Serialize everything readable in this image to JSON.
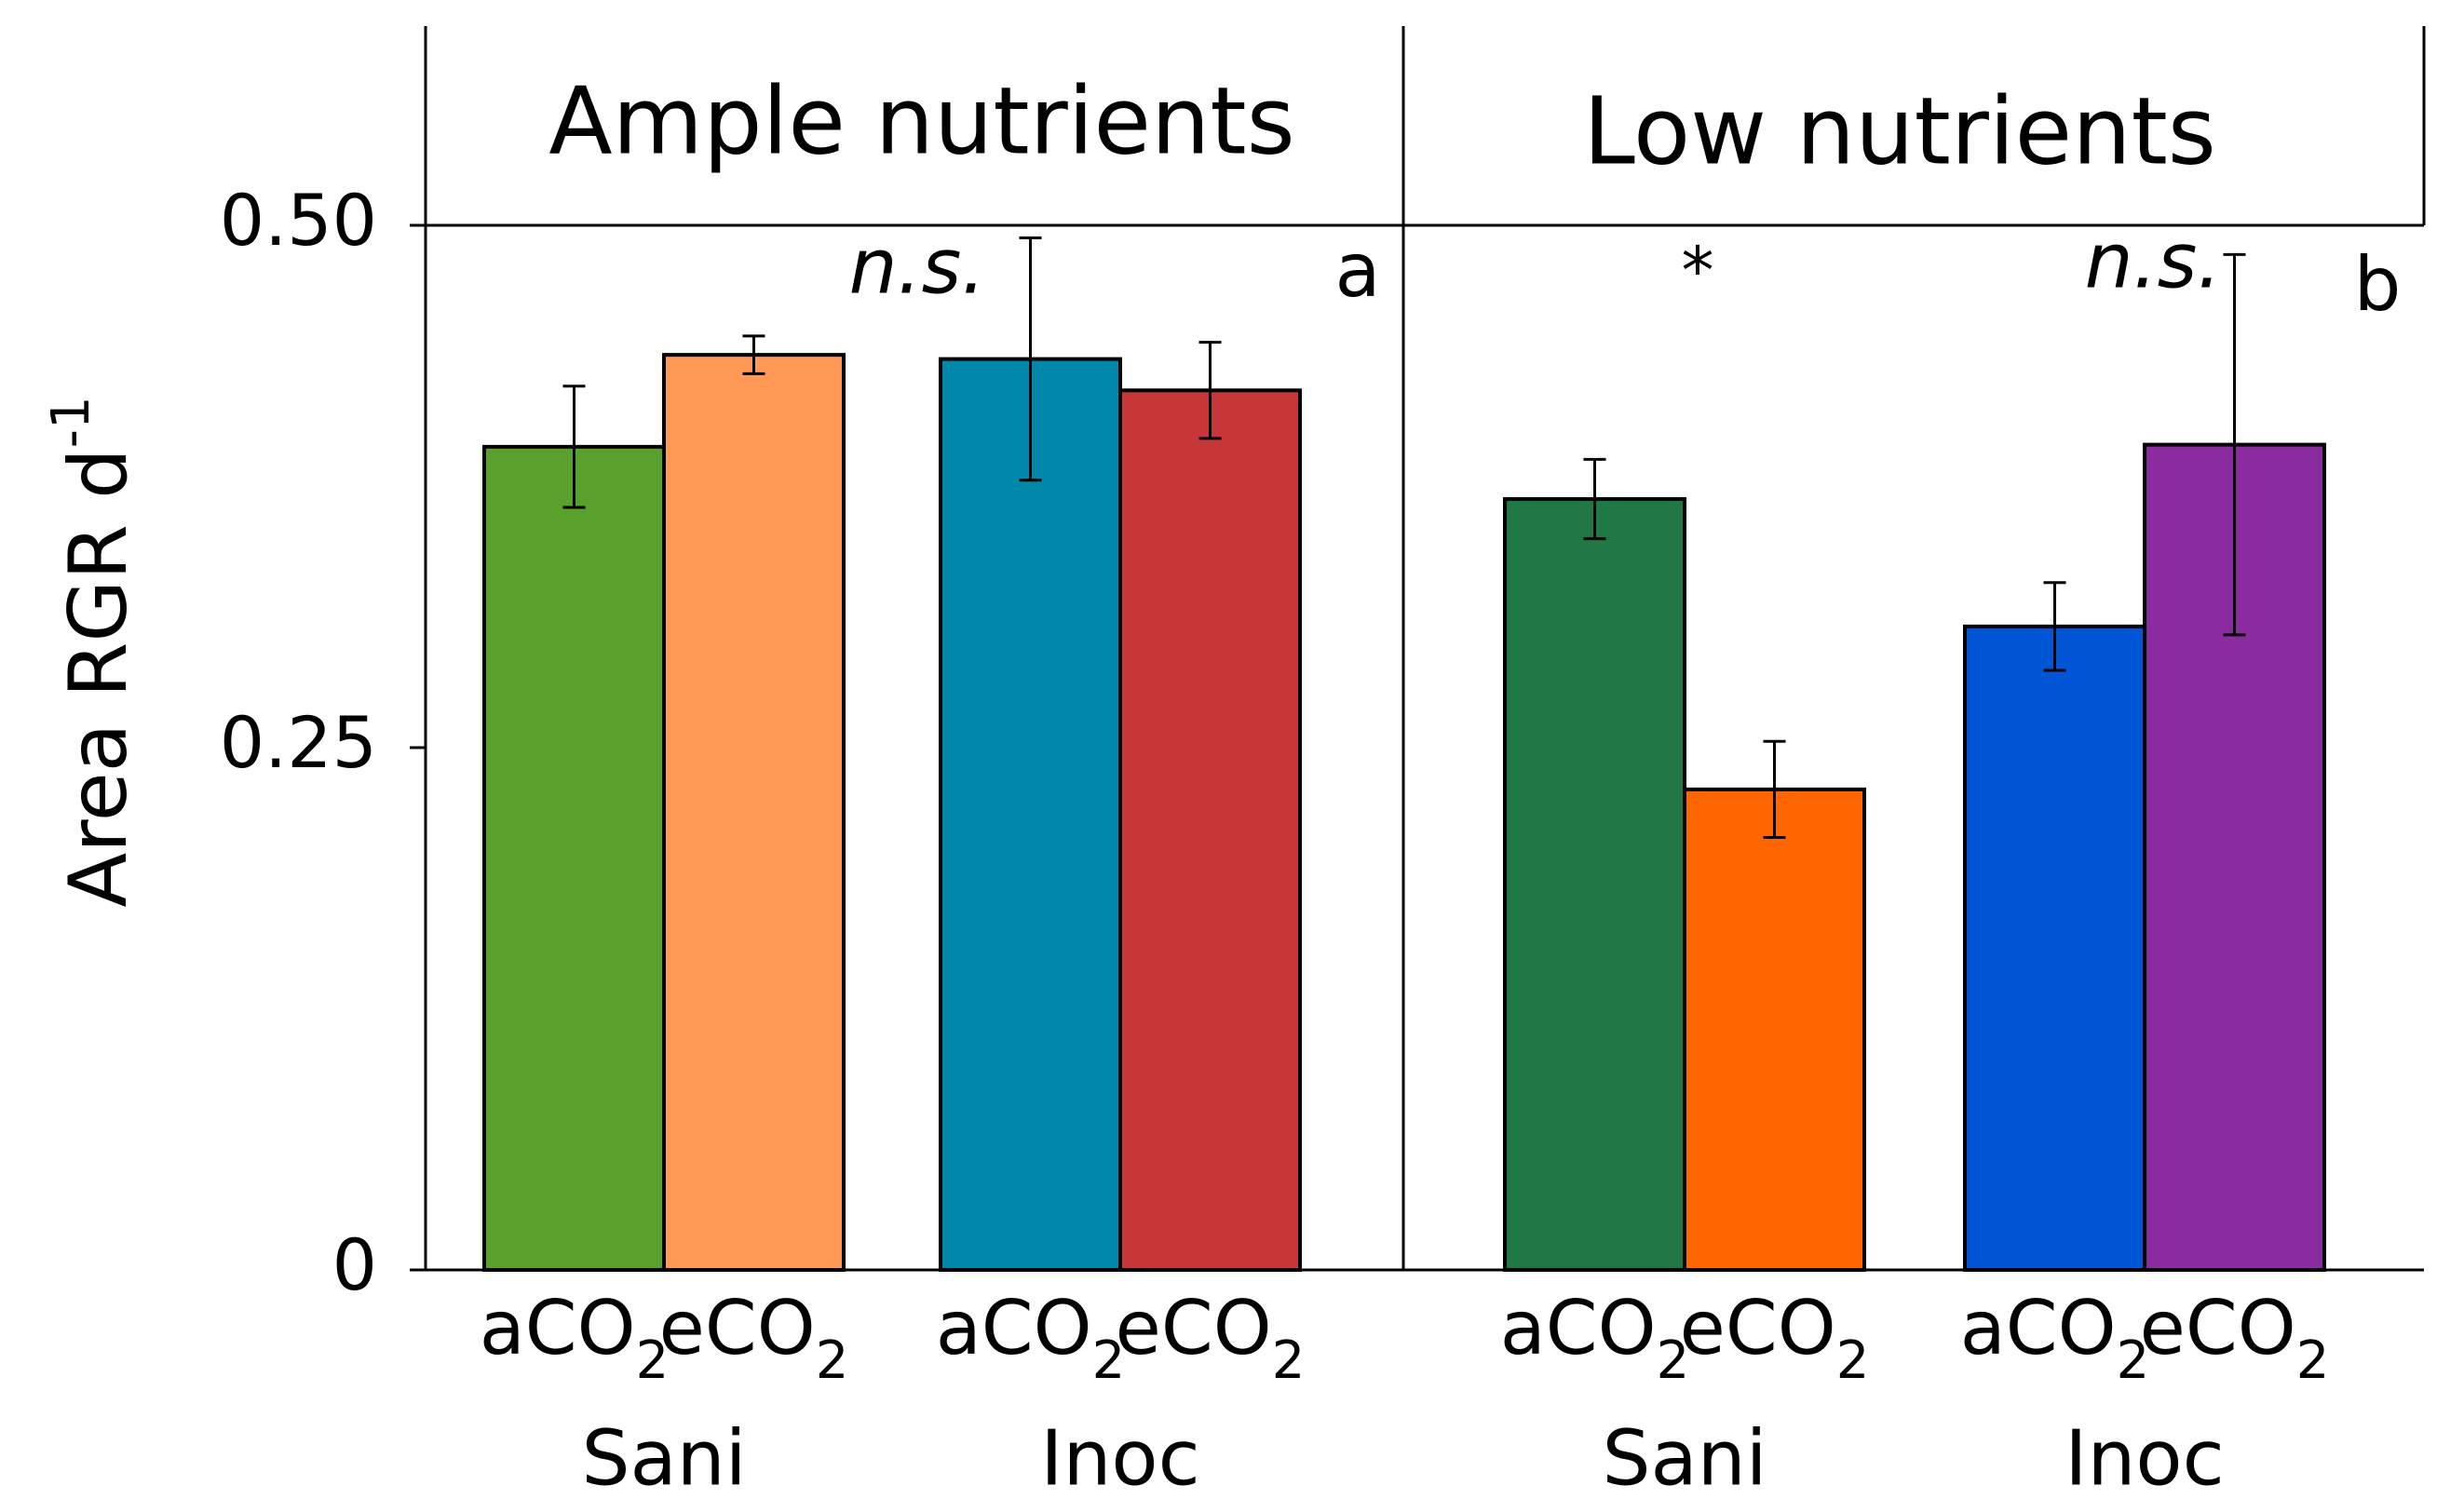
{
  "chart_data": {
    "type": "bar",
    "ylabel": "Area RGR d",
    "ylabel_sup": "-1",
    "ylim": [
      0,
      0.5
    ],
    "yticks": [
      {
        "value": 0,
        "label": "0"
      },
      {
        "value": 0.25,
        "label": "0.25"
      },
      {
        "value": 0.5,
        "label": "0.50"
      }
    ],
    "grid": false,
    "panels": [
      {
        "title": "Ample nutrients",
        "letter": "a",
        "groups": [
          {
            "label": "Sani",
            "significance": "n.s.",
            "bars": [
              {
                "name": "aCO",
                "sub": "2",
                "value": 0.394,
                "error": 0.029,
                "color": "#5AA02C"
              },
              {
                "name": "eCO",
                "sub": "2",
                "value": 0.438,
                "error": 0.009,
                "color": "#FF9955"
              }
            ]
          },
          {
            "label": "Inoc",
            "significance": "",
            "bars": [
              {
                "name": "aCO",
                "sub": "2",
                "value": 0.436,
                "error": 0.058,
                "color": "#0088AA"
              },
              {
                "name": "eCO",
                "sub": "2",
                "value": 0.421,
                "error": 0.023,
                "color": "#C83737"
              }
            ]
          }
        ]
      },
      {
        "title": "Low nutrients",
        "letter": "b",
        "groups": [
          {
            "label": "Sani",
            "significance": "*",
            "bars": [
              {
                "name": "aCO",
                "sub": "2",
                "value": 0.369,
                "error": 0.019,
                "color": "#217844"
              },
              {
                "name": "eCO",
                "sub": "2",
                "value": 0.23,
                "error": 0.023,
                "color": "#FF6600"
              }
            ]
          },
          {
            "label": "Inoc",
            "significance": "n.s.",
            "bars": [
              {
                "name": "aCO",
                "sub": "2",
                "value": 0.308,
                "error": 0.021,
                "color": "#0055D4"
              },
              {
                "name": "eCO",
                "sub": "2",
                "value": 0.395,
                "error": 0.091,
                "color": "#8A2BA0"
              }
            ]
          }
        ]
      }
    ]
  }
}
